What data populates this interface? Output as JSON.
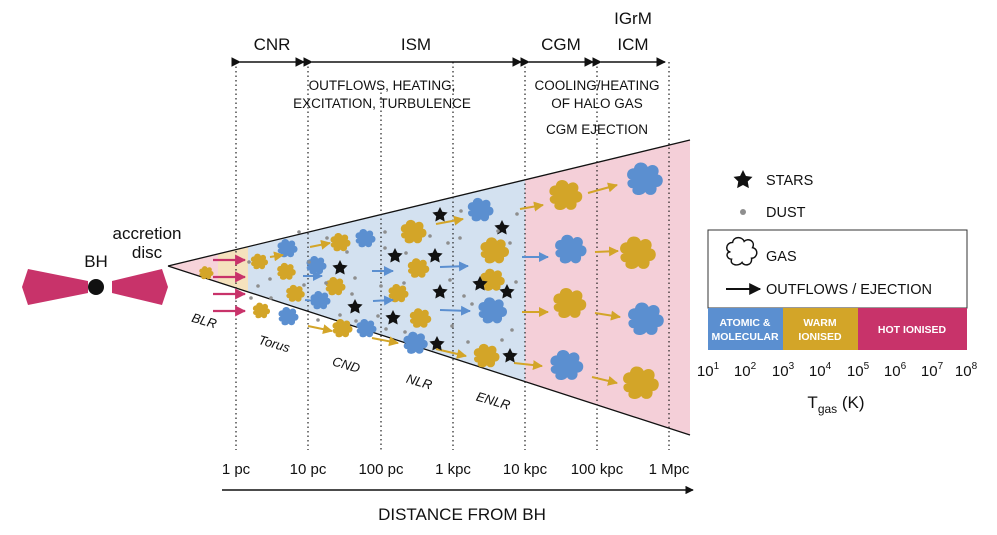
{
  "labels": {
    "bh": "BH",
    "accretion_1": "accretion",
    "accretion_2": "disc"
  },
  "headers": {
    "cnr": "CNR",
    "ism": "ISM",
    "cgm": "CGM",
    "igrm": "IGrM",
    "icm": "ICM"
  },
  "processes": {
    "ism_1": "OUTFLOWS, HEATING,",
    "ism_2": "EXCITATION, TURBULENCE",
    "cgm_1": "COOLING/HEATING",
    "cgm_2": "OF HALO GAS",
    "cgm_ejection": "CGM EJECTION"
  },
  "regions": {
    "blr": "BLR",
    "torus": "Torus",
    "cnd": "CND",
    "nlr": "NLR",
    "enlr": "ENLR"
  },
  "distance": {
    "ticks": [
      "1 pc",
      "10 pc",
      "100 pc",
      "1 kpc",
      "10 kpc",
      "100 kpc",
      "1 Mpc"
    ],
    "label": "DISTANCE FROM BH"
  },
  "legend": {
    "stars": "STARS",
    "dust": "DUST",
    "gas": "GAS",
    "outflows": "OUTFLOWS / EJECTION"
  },
  "temperature": {
    "bands": [
      {
        "line1": "ATOMIC &",
        "line2": "MOLECULAR",
        "color": "#5b8fd0"
      },
      {
        "line1": "WARM",
        "line2": "IONISED",
        "color": "#d3a528"
      },
      {
        "line1": "HOT IONISED",
        "line2": "",
        "color": "#c8336a"
      }
    ],
    "ticks": [
      {
        "base": "10",
        "exp": "1"
      },
      {
        "base": "10",
        "exp": "2"
      },
      {
        "base": "10",
        "exp": "3"
      },
      {
        "base": "10",
        "exp": "4"
      },
      {
        "base": "10",
        "exp": "5"
      },
      {
        "base": "10",
        "exp": "6"
      },
      {
        "base": "10",
        "exp": "7"
      },
      {
        "base": "10",
        "exp": "8"
      }
    ],
    "axis": {
      "symbol": "T",
      "subscript": "gas",
      "unit": " (K)"
    }
  },
  "colors": {
    "magenta": "#c8336a",
    "blue": "#5b8fd0",
    "gold": "#d3a528",
    "pink_band": "#f6d3da",
    "blue_band": "#d3e1f0",
    "cream_band": "#f5e2bd"
  }
}
